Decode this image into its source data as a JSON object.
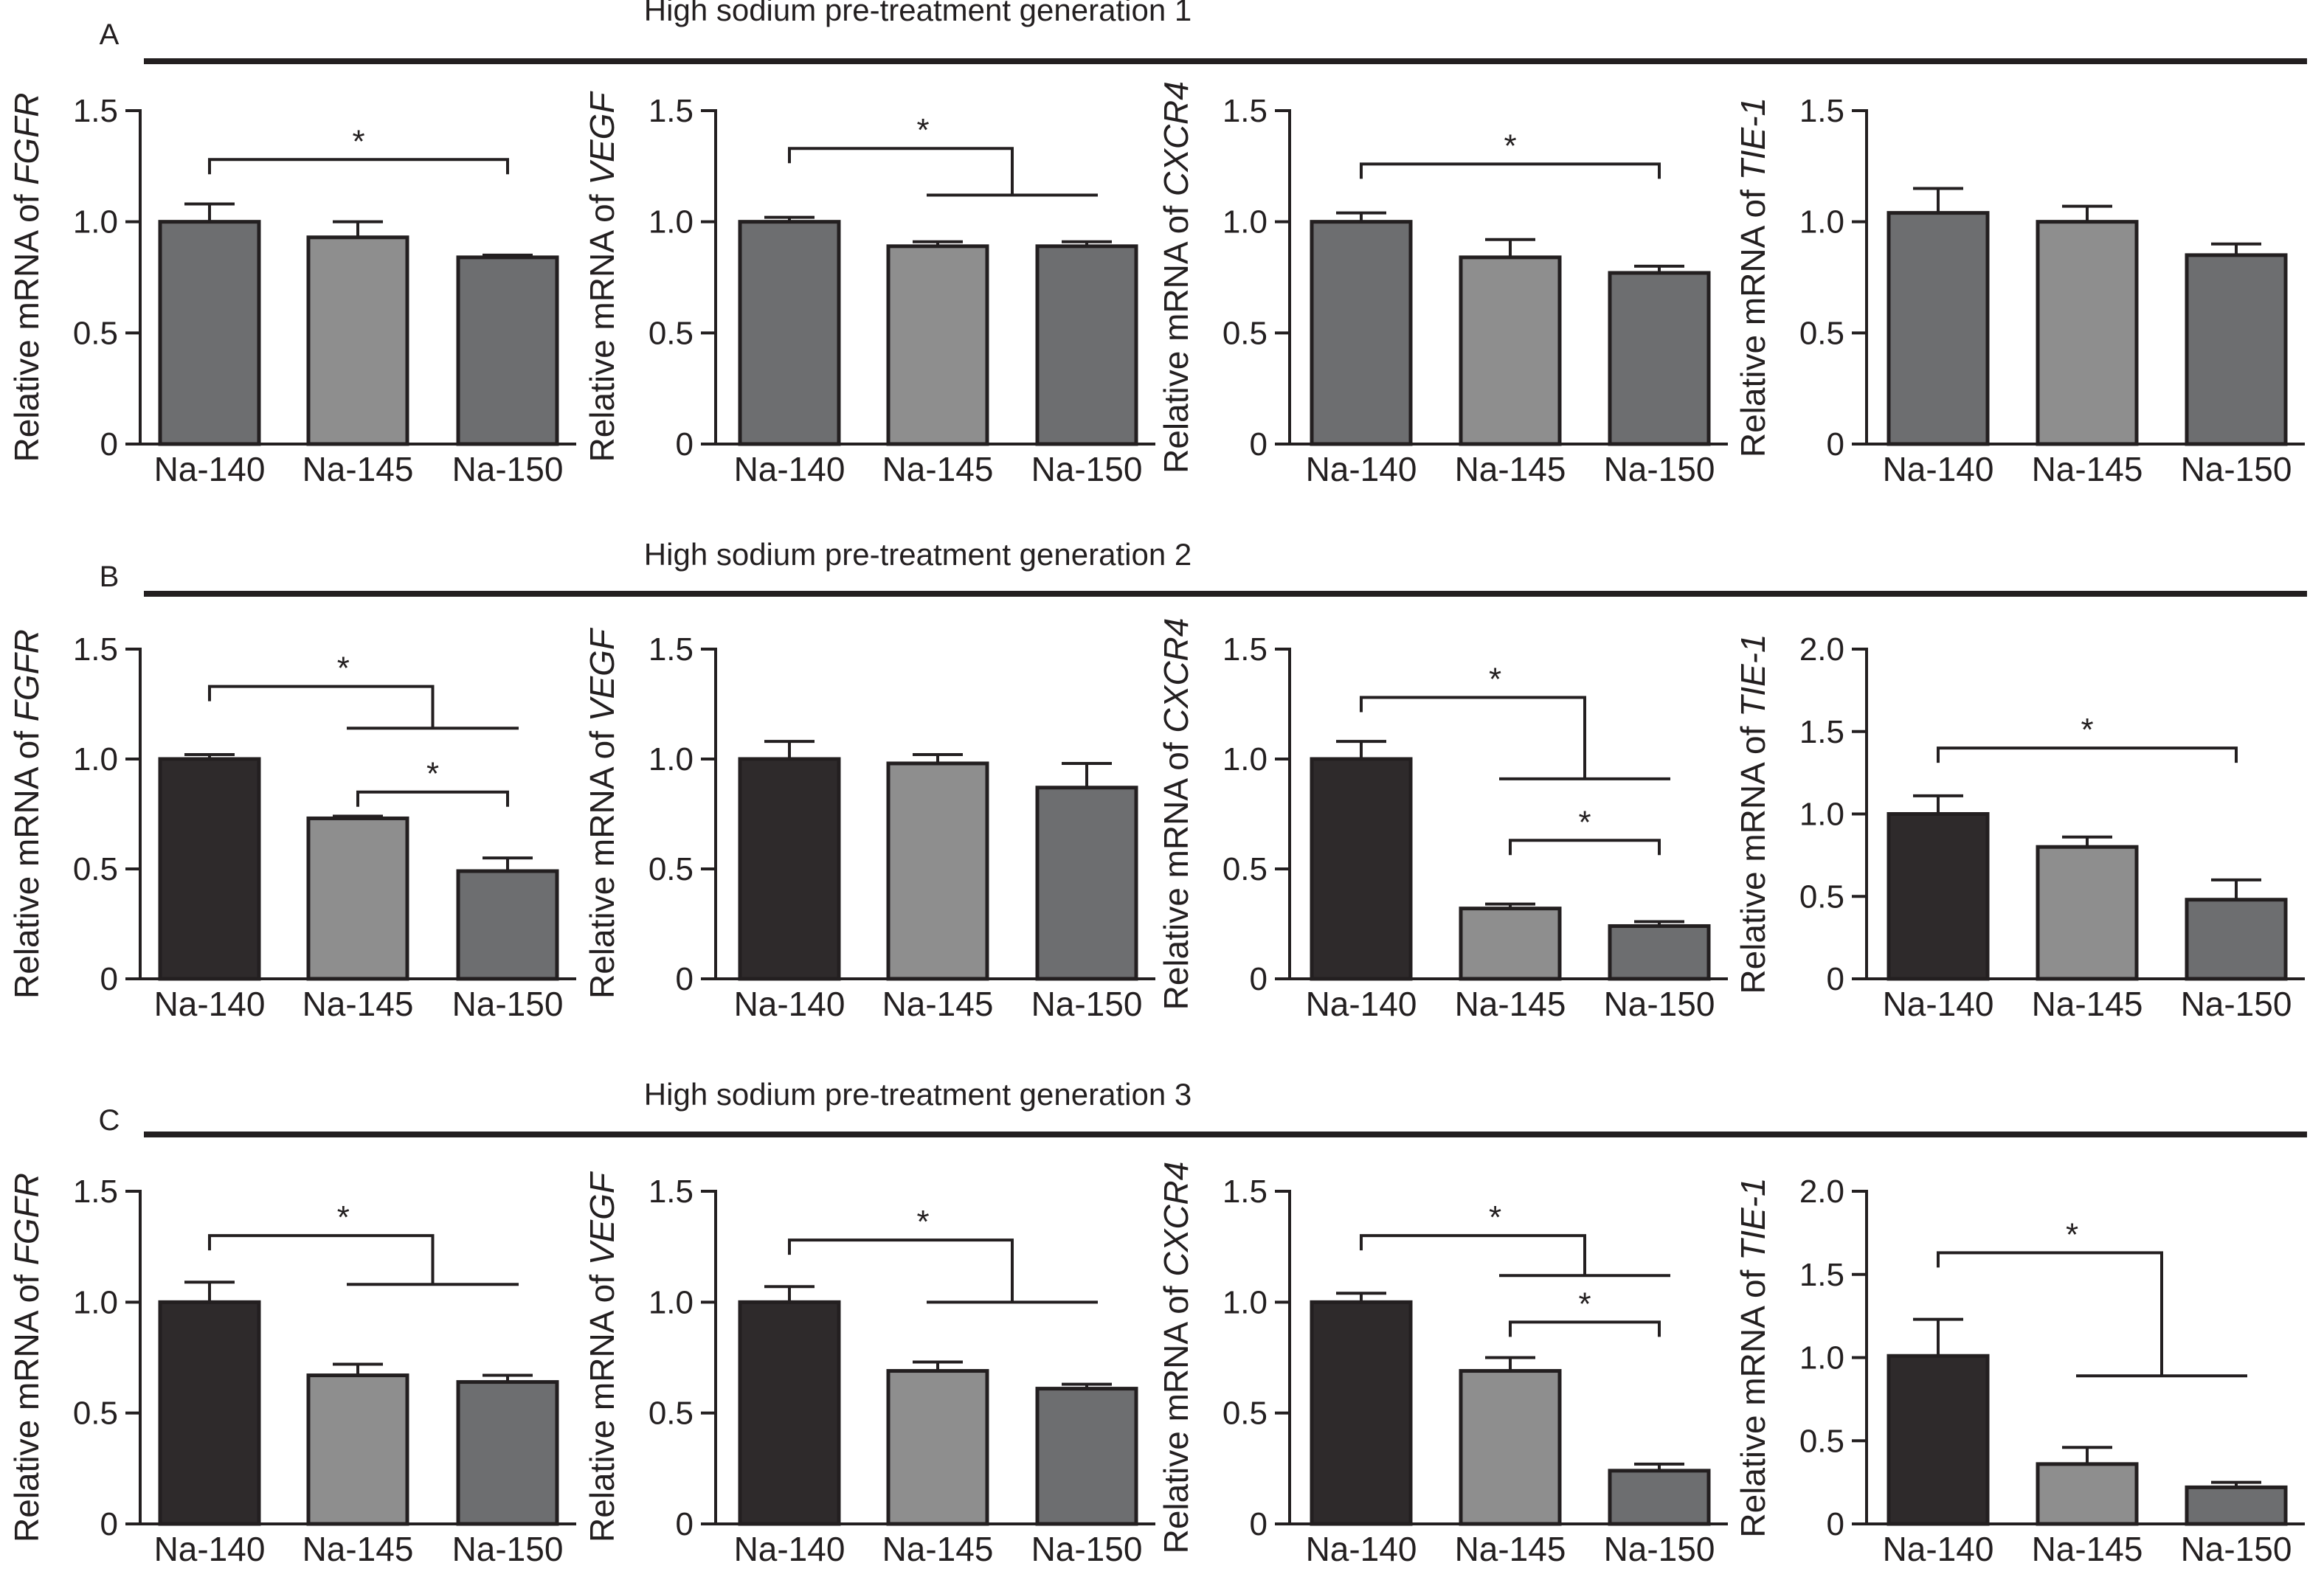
{
  "row_labels": [
    "A",
    "B",
    "C"
  ],
  "row_titles": [
    "High sodium pre-treatment generation 1",
    "High sodium pre-treatment generation 2",
    "High sodium pre-treatment generation 3"
  ],
  "colors": {
    "Na-140_gen1": "#6d6e70",
    "Na-140": "#2e2a2b",
    "Na-145": "#8e8e8e",
    "Na-150": "#6d6e70",
    "stroke": "#231f20"
  },
  "chart_data": [
    {
      "type": "bar",
      "row": 0,
      "col": 0,
      "ylabel_prefix": "Relative mRNA of ",
      "ylabel_gene": "FGFR",
      "categories": [
        "Na-140",
        "Na-145",
        "Na-150"
      ],
      "values": [
        1.0,
        0.93,
        0.84
      ],
      "errors": [
        0.08,
        0.07,
        0.01
      ],
      "ylim": [
        0,
        1.5
      ],
      "yticks": [
        "0",
        "0.5",
        "1.0",
        "1.5"
      ],
      "yticks_values": [
        0,
        0.5,
        1.0,
        1.5
      ],
      "significance": [
        {
          "type": "simple",
          "from": 0,
          "to": 2,
          "level": 1.28,
          "label": "*"
        }
      ]
    },
    {
      "type": "bar",
      "row": 0,
      "col": 1,
      "ylabel_prefix": "Relative mRNA of ",
      "ylabel_gene": "VEGF",
      "categories": [
        "Na-140",
        "Na-145",
        "Na-150"
      ],
      "values": [
        1.0,
        0.89,
        0.89
      ],
      "errors": [
        0.02,
        0.02,
        0.02
      ],
      "ylim": [
        0,
        1.5
      ],
      "yticks": [
        "0",
        "0.5",
        "1.0",
        "1.5"
      ],
      "yticks_values": [
        0,
        0.5,
        1.0,
        1.5
      ],
      "significance": [
        {
          "type": "group",
          "from": 0,
          "group_from": 1,
          "group_to": 2,
          "level": 1.33,
          "group_level": 1.12,
          "label": "*"
        }
      ]
    },
    {
      "type": "bar",
      "row": 0,
      "col": 2,
      "ylabel_prefix": "Relative mRNA of ",
      "ylabel_gene": "CXCR4",
      "categories": [
        "Na-140",
        "Na-145",
        "Na-150"
      ],
      "values": [
        1.0,
        0.84,
        0.77
      ],
      "errors": [
        0.04,
        0.08,
        0.03
      ],
      "ylim": [
        0,
        1.5
      ],
      "yticks": [
        "0",
        "0.5",
        "1.0",
        "1.5"
      ],
      "yticks_values": [
        0,
        0.5,
        1.0,
        1.5
      ],
      "significance": [
        {
          "type": "simple",
          "from": 0,
          "to": 2,
          "level": 1.26,
          "label": "*"
        }
      ]
    },
    {
      "type": "bar",
      "row": 0,
      "col": 3,
      "ylabel_prefix": "Relative mRNA of ",
      "ylabel_gene": "TIE-1",
      "categories": [
        "Na-140",
        "Na-145",
        "Na-150"
      ],
      "values": [
        1.04,
        1.0,
        0.85
      ],
      "errors": [
        0.11,
        0.07,
        0.05
      ],
      "ylim": [
        0,
        1.5
      ],
      "yticks": [
        "0",
        "0.5",
        "1.0",
        "1.5"
      ],
      "yticks_values": [
        0,
        0.5,
        1.0,
        1.5
      ],
      "significance": []
    },
    {
      "type": "bar",
      "row": 1,
      "col": 0,
      "ylabel_prefix": "Relative mRNA of ",
      "ylabel_gene": "FGFR",
      "categories": [
        "Na-140",
        "Na-145",
        "Na-150"
      ],
      "values": [
        1.0,
        0.73,
        0.49
      ],
      "errors": [
        0.02,
        0.01,
        0.06
      ],
      "ylim": [
        0,
        1.5
      ],
      "yticks": [
        "0",
        "0.5",
        "1.0",
        "1.5"
      ],
      "yticks_values": [
        0,
        0.5,
        1.0,
        1.5
      ],
      "significance": [
        {
          "type": "group",
          "from": 0,
          "group_from": 1,
          "group_to": 2,
          "level": 1.33,
          "group_level": 1.14,
          "label": "*"
        },
        {
          "type": "simple",
          "from": 1,
          "to": 2,
          "level": 0.85,
          "label": "*"
        }
      ]
    },
    {
      "type": "bar",
      "row": 1,
      "col": 1,
      "ylabel_prefix": "Relative mRNA of ",
      "ylabel_gene": "VEGF",
      "categories": [
        "Na-140",
        "Na-145",
        "Na-150"
      ],
      "values": [
        1.0,
        0.98,
        0.87
      ],
      "errors": [
        0.08,
        0.04,
        0.11
      ],
      "ylim": [
        0,
        1.5
      ],
      "yticks": [
        "0",
        "0.5",
        "1.0",
        "1.5"
      ],
      "yticks_values": [
        0,
        0.5,
        1.0,
        1.5
      ],
      "significance": []
    },
    {
      "type": "bar",
      "row": 1,
      "col": 2,
      "ylabel_prefix": "Relative mRNA of ",
      "ylabel_gene": "CXCR4",
      "categories": [
        "Na-140",
        "Na-145",
        "Na-150"
      ],
      "values": [
        1.0,
        0.32,
        0.24
      ],
      "errors": [
        0.08,
        0.02,
        0.02
      ],
      "ylim": [
        0,
        1.5
      ],
      "yticks": [
        "0",
        "0.5",
        "1.0",
        "1.5"
      ],
      "yticks_values": [
        0,
        0.5,
        1.0,
        1.5
      ],
      "significance": [
        {
          "type": "group",
          "from": 0,
          "group_from": 1,
          "group_to": 2,
          "level": 1.28,
          "group_level": 0.91,
          "label": "*"
        },
        {
          "type": "simple",
          "from": 1,
          "to": 2,
          "level": 0.63,
          "label": "*"
        }
      ]
    },
    {
      "type": "bar",
      "row": 1,
      "col": 3,
      "ylabel_prefix": "Relative mRNA of ",
      "ylabel_gene": "TIE-1",
      "categories": [
        "Na-140",
        "Na-145",
        "Na-150"
      ],
      "values": [
        1.0,
        0.8,
        0.48
      ],
      "errors": [
        0.11,
        0.06,
        0.12
      ],
      "ylim": [
        0,
        2.0
      ],
      "yticks": [
        "0",
        "0.5",
        "1.0",
        "1.5",
        "2.0"
      ],
      "yticks_values": [
        0,
        0.5,
        1.0,
        1.5,
        2.0
      ],
      "significance": [
        {
          "type": "simple",
          "from": 0,
          "to": 2,
          "level": 1.4,
          "label": "*"
        }
      ]
    },
    {
      "type": "bar",
      "row": 2,
      "col": 0,
      "ylabel_prefix": "Relative mRNA of ",
      "ylabel_gene": "FGFR",
      "categories": [
        "Na-140",
        "Na-145",
        "Na-150"
      ],
      "values": [
        1.0,
        0.67,
        0.64
      ],
      "errors": [
        0.09,
        0.05,
        0.03
      ],
      "ylim": [
        0,
        1.5
      ],
      "yticks": [
        "0",
        "0.5",
        "1.0",
        "1.5"
      ],
      "yticks_values": [
        0,
        0.5,
        1.0,
        1.5
      ],
      "significance": [
        {
          "type": "group",
          "from": 0,
          "group_from": 1,
          "group_to": 2,
          "level": 1.3,
          "group_level": 1.08,
          "label": "*"
        }
      ]
    },
    {
      "type": "bar",
      "row": 2,
      "col": 1,
      "ylabel_prefix": "Relative mRNA of ",
      "ylabel_gene": "VEGF",
      "categories": [
        "Na-140",
        "Na-145",
        "Na-150"
      ],
      "values": [
        1.0,
        0.69,
        0.61
      ],
      "errors": [
        0.07,
        0.04,
        0.02
      ],
      "ylim": [
        0,
        1.5
      ],
      "yticks": [
        "0",
        "0.5",
        "1.0",
        "1.5"
      ],
      "yticks_values": [
        0,
        0.5,
        1.0,
        1.5
      ],
      "significance": [
        {
          "type": "group",
          "from": 0,
          "group_from": 1,
          "group_to": 2,
          "level": 1.28,
          "group_level": 1.0,
          "label": "*"
        }
      ]
    },
    {
      "type": "bar",
      "row": 2,
      "col": 2,
      "ylabel_prefix": "Relative mRNA of ",
      "ylabel_gene": "CXCR4",
      "categories": [
        "Na-140",
        "Na-145",
        "Na-150"
      ],
      "values": [
        1.0,
        0.69,
        0.24
      ],
      "errors": [
        0.04,
        0.06,
        0.03
      ],
      "ylim": [
        0,
        1.5
      ],
      "yticks": [
        "0",
        "0.5",
        "1.0",
        "1.5"
      ],
      "yticks_values": [
        0,
        0.5,
        1.0,
        1.5
      ],
      "significance": [
        {
          "type": "group",
          "from": 0,
          "group_from": 1,
          "group_to": 2,
          "level": 1.3,
          "group_level": 1.12,
          "label": "*"
        },
        {
          "type": "simple",
          "from": 1,
          "to": 2,
          "level": 0.91,
          "label": "*"
        }
      ]
    },
    {
      "type": "bar",
      "row": 2,
      "col": 3,
      "ylabel_prefix": "Relative mRNA of ",
      "ylabel_gene": "TIE-1",
      "categories": [
        "Na-140",
        "Na-145",
        "Na-150"
      ],
      "values": [
        1.01,
        0.36,
        0.22
      ],
      "errors": [
        0.22,
        0.1,
        0.03
      ],
      "ylim": [
        0,
        2.0
      ],
      "yticks": [
        "0",
        "0.5",
        "1.0",
        "1.5",
        "2.0"
      ],
      "yticks_values": [
        0,
        0.5,
        1.0,
        1.5,
        2.0
      ],
      "significance": [
        {
          "type": "group",
          "from": 0,
          "group_from": 1,
          "group_to": 2,
          "level": 1.63,
          "group_level": 0.89,
          "label": "*"
        }
      ]
    }
  ]
}
